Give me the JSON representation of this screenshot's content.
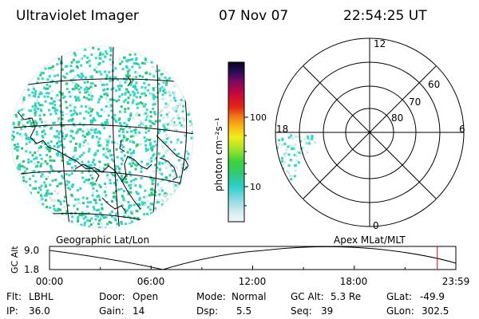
{
  "header": {
    "title": "Ultraviolet Imager",
    "date": "07 Nov 07",
    "time": "22:54:25 UT"
  },
  "colorbar": {
    "unit_label": "photon cm⁻²s⁻¹",
    "tick_100": "100",
    "tick_10": "10"
  },
  "polar": {
    "label_12": "12",
    "label_18": "18",
    "label_6": "6",
    "label_0": "0",
    "label_60": "60",
    "label_70": "70",
    "label_80": "80"
  },
  "panels": {
    "geographic_label": "Geographic Lat/Lon",
    "apex_label": "Apex MLat/MLT"
  },
  "altitude_plot": {
    "y_axis_label": "GC Alt",
    "y_max": "9.0",
    "y_min": "1.8",
    "x_ticks": [
      "00:00",
      "06:00",
      "12:00",
      "18:00",
      "23:59"
    ],
    "current_time_hours": 22.907
  },
  "status": {
    "flt_label": "Flt:",
    "flt_value": "LBHL",
    "ip_label": "IP:",
    "ip_value": "36.0",
    "door_label": "Door:",
    "door_value": "Open",
    "gain_label": "Gain:",
    "gain_value": "14",
    "mode_label": "Mode:",
    "mode_value": "Normal",
    "dsp_label": "Dsp:",
    "dsp_value": "5.5",
    "gcalt_label": "GC Alt:",
    "gcalt_value": "5.3 Re",
    "seq_label": "Seq:",
    "seq_value": "39",
    "glat_label": "GLat:",
    "glat_value": "-49.9",
    "glon_label": "GLon:",
    "glon_value": "302.5"
  },
  "colors": {
    "cyan": "#33d6c8",
    "green": "#2ec46a",
    "pale": "#cfe9e6",
    "line_marker": "#e00000"
  }
}
